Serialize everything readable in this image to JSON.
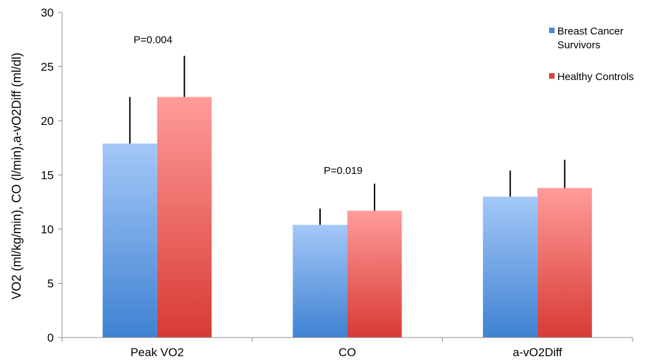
{
  "chart_data": {
    "type": "bar",
    "title": "",
    "xlabel": "",
    "ylabel": "VO2 (ml/kg/min), CO (l/min),a-vO2Diff (ml/dl)",
    "ylim": [
      0,
      30
    ],
    "yticks": [
      0,
      5,
      10,
      15,
      20,
      25,
      30
    ],
    "grid": false,
    "legend_position": "top-right",
    "categories": [
      "Peak VO2",
      "CO",
      "a-vO2Diff"
    ],
    "series": [
      {
        "name": "Breast Cancer Survivors",
        "values": [
          17.9,
          10.4,
          13.0
        ],
        "errors": [
          4.3,
          1.5,
          2.4
        ],
        "color_light": "#a4c8f8",
        "color_dark": "#3f82d2",
        "legend_color": "#4a8ad6"
      },
      {
        "name": "Healthy Controls",
        "values": [
          22.2,
          11.7,
          13.8
        ],
        "errors": [
          3.8,
          2.5,
          2.6
        ],
        "color_light": "#ff9c9a",
        "color_dark": "#d83a34",
        "legend_color": "#d9433d"
      }
    ],
    "annotations": [
      {
        "category": "Peak VO2",
        "text": "P=0.004",
        "y": 27.5
      },
      {
        "category": "CO",
        "text": "P=0.019",
        "y": 15.4
      }
    ]
  }
}
